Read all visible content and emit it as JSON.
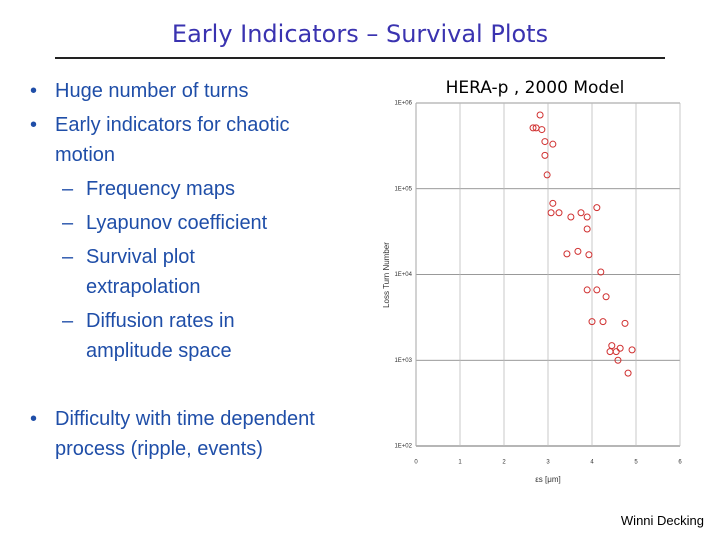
{
  "title": "Early Indicators – Survival Plots",
  "bullets": [
    {
      "level": 1,
      "text": "Huge number of turns"
    },
    {
      "level": 1,
      "text": "Early indicators for chaotic motion"
    },
    {
      "level": 2,
      "text": "Frequency maps"
    },
    {
      "level": 2,
      "text": "Lyapunov coefficient"
    },
    {
      "level": 2,
      "text": "Survival plot extrapolation"
    },
    {
      "level": 2,
      "text": "Diffusion rates in amplitude space"
    },
    {
      "level": 1,
      "text": "Difficulty with time dependent process (ripple, events)"
    }
  ],
  "footer": "Winni Decking",
  "chart_data": {
    "type": "scatter",
    "title": "HERA-p , 2000 Model",
    "x_label": "εs [μm]",
    "y_label": "Loss Turn Number",
    "color": "#d03030",
    "log_y": true,
    "grid": true,
    "xlim": [
      0,
      6
    ],
    "xticks": [
      0,
      1,
      2,
      3,
      4,
      5,
      6
    ],
    "ylim": [
      100,
      1000000
    ],
    "yticks": [
      {
        "value": 100,
        "label": "1E+02"
      },
      {
        "value": 1000,
        "label": "1E+03"
      },
      {
        "value": 10000,
        "label": "1E+04"
      },
      {
        "value": 100000,
        "label": "1E+05"
      },
      {
        "value": 1000000,
        "label": "1E+06"
      }
    ],
    "x": [
      2.82,
      2.73,
      2.86,
      2.66,
      2.93,
      3.11,
      2.93,
      2.98,
      3.11,
      3.07,
      3.25,
      3.52,
      3.75,
      3.89,
      4.11,
      3.43,
      3.68,
      3.93,
      3.89,
      4.2,
      3.89,
      4.11,
      4.32,
      4.0,
      4.25,
      4.75,
      4.45,
      4.41,
      4.55,
      4.64,
      4.91,
      4.82,
      4.59
    ],
    "values": [
      724000,
      513000,
      490000,
      513000,
      355000,
      331000,
      245000,
      145000,
      67600,
      52500,
      52500,
      46800,
      52500,
      46800,
      60300,
      17400,
      18600,
      17000,
      33900,
      10700,
      6610,
      6610,
      5500,
      2820,
      2820,
      2690,
      1480,
      1260,
      1260,
      1380,
      1320,
      708,
      1000
    ]
  }
}
